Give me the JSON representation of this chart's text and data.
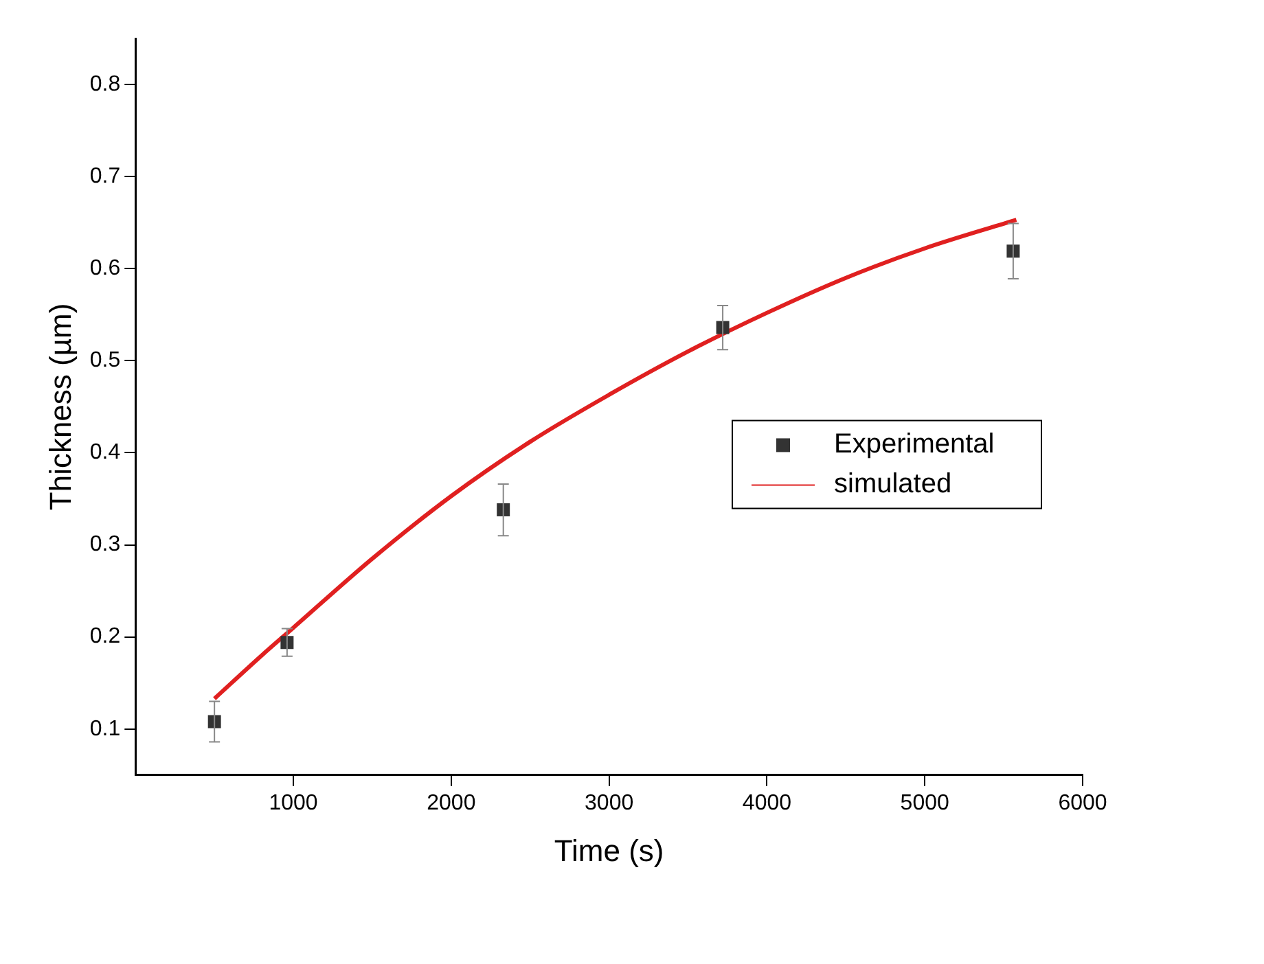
{
  "chart_data": {
    "type": "scatter",
    "xlabel": "Time (s)",
    "ylabel": "Thickness (µm)",
    "xlim": [
      0,
      6000
    ],
    "xticks": [
      1000,
      2000,
      3000,
      4000,
      5000,
      6000
    ],
    "ylim": [
      0.05,
      0.85
    ],
    "yticks": [
      0.1,
      0.2,
      0.3,
      0.4,
      0.5,
      0.6,
      0.7,
      0.8
    ],
    "grid": false,
    "legend": "right",
    "series": [
      {
        "name": "Experimental",
        "color": "#333333",
        "marker": "square",
        "x": [
          500,
          960,
          2330,
          3720,
          5560
        ],
        "values": [
          0.108,
          0.194,
          0.338,
          0.536,
          0.619
        ],
        "errors": [
          0.022,
          0.015,
          0.028,
          0.024,
          0.03
        ]
      },
      {
        "name": "simulated",
        "type": "line",
        "color": "#e02020",
        "marker": "none",
        "x": [
          500,
          800,
          1000,
          1500,
          2000,
          2500,
          3000,
          3500,
          4000,
          4500,
          5000,
          5580
        ],
        "values": [
          0.133,
          0.18,
          0.21,
          0.285,
          0.353,
          0.412,
          0.463,
          0.51,
          0.552,
          0.59,
          0.622,
          0.653
        ]
      }
    ]
  }
}
